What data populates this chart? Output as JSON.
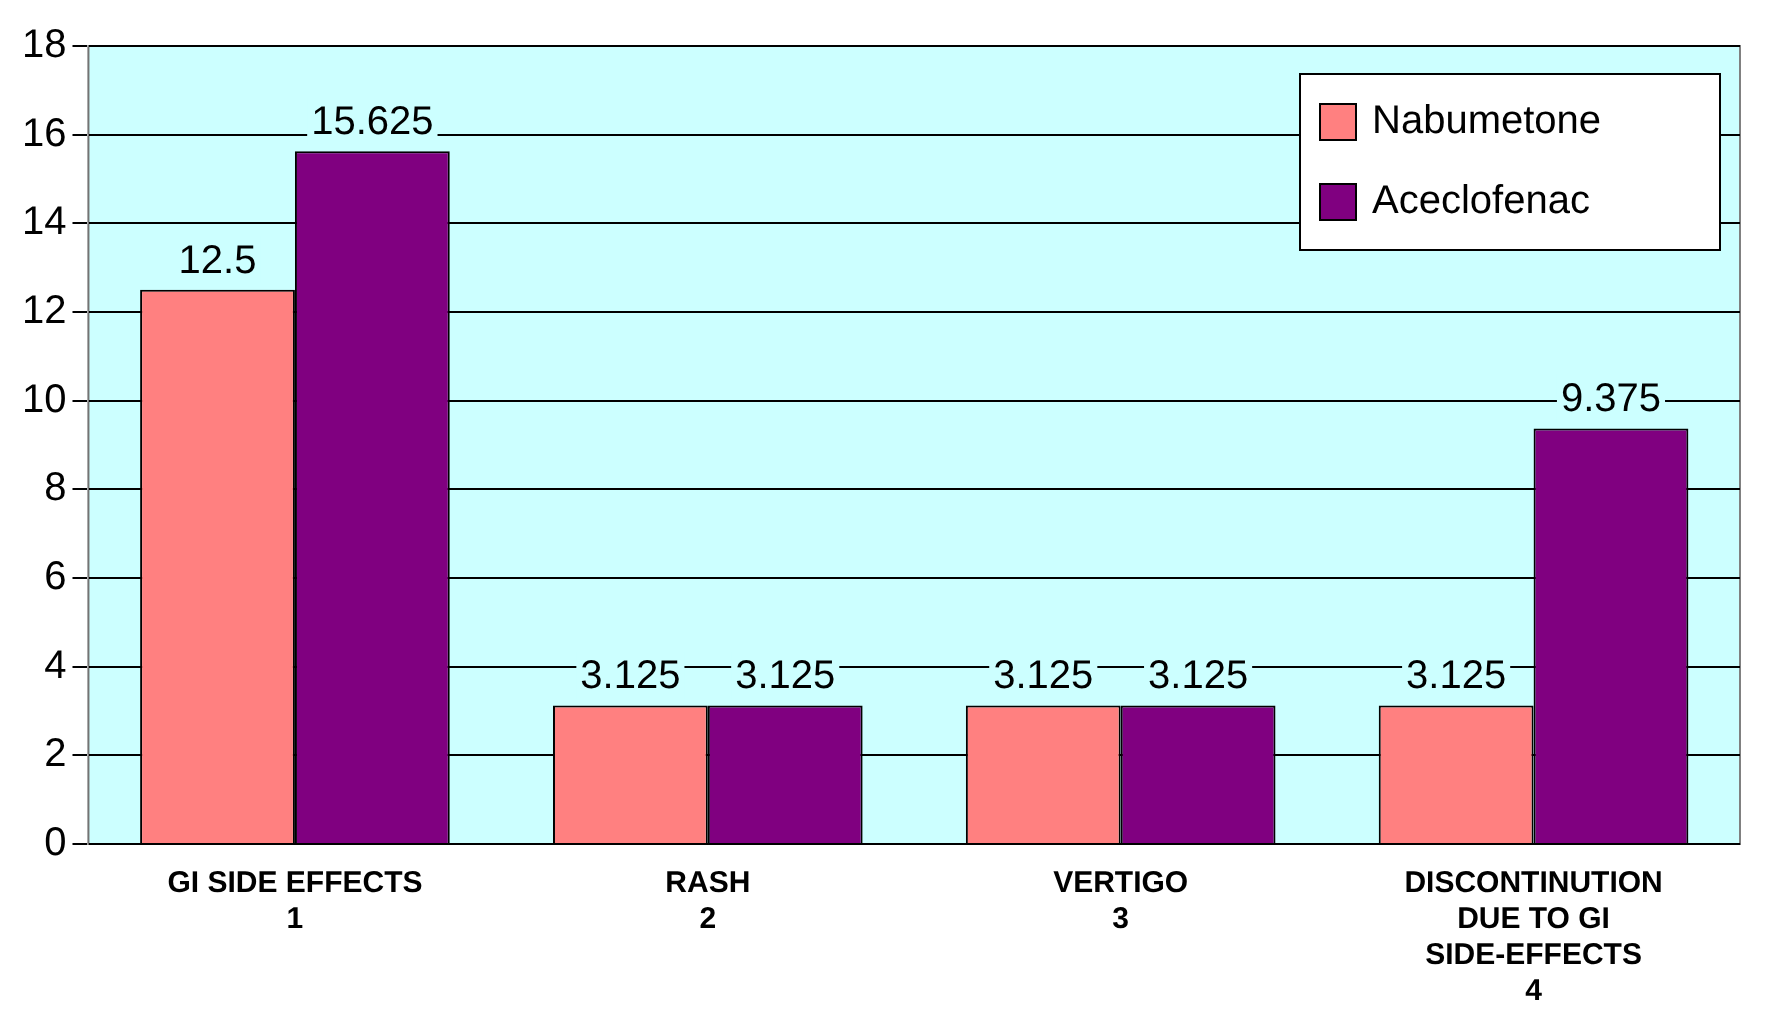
{
  "chart_data": {
    "type": "bar",
    "categories": [
      "GI SIDE EFFECTS\n1",
      "RASH\n2",
      "VERTIGO\n3",
      "DISCONTINUTION DUE TO GI SIDE-EFFECTS\n4"
    ],
    "series": [
      {
        "name": "Nabumetone",
        "color": "#ff8080",
        "values": [
          12.5,
          3.125,
          3.125,
          3.125
        ]
      },
      {
        "name": "Aceclofenac",
        "color": "#800080",
        "values": [
          15.625,
          3.125,
          3.125,
          9.375
        ]
      }
    ],
    "ylim": [
      0,
      18
    ],
    "yticks": [
      0,
      2,
      4,
      6,
      8,
      10,
      12,
      14,
      16,
      18
    ],
    "grid": "y",
    "legend": "top right",
    "data_labels": true
  }
}
